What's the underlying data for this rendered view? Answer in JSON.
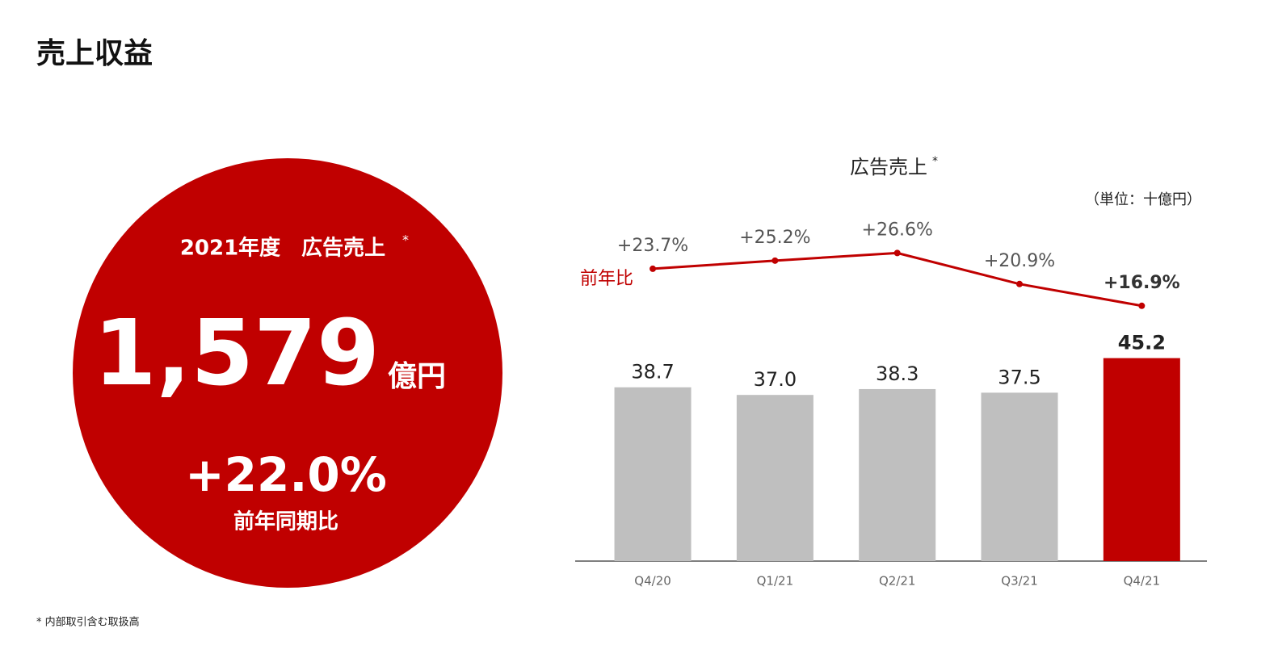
{
  "header": {
    "title": "売上収益"
  },
  "highlight": {
    "label": "2021年度　広告売上",
    "label_mark": "*",
    "amount": "1,579",
    "unit": "億円",
    "growth": "+22.0%",
    "growth_label": "前年同期比"
  },
  "chart_data": {
    "type": "bar",
    "title": "広告売上",
    "title_mark": "*",
    "unit_note": "（単位：十億円）",
    "categories": [
      "Q4/20",
      "Q1/21",
      "Q2/21",
      "Q3/21",
      "Q4/21"
    ],
    "values": [
      38.7,
      37.0,
      38.3,
      37.5,
      45.2
    ],
    "value_labels": [
      "38.7",
      "37.0",
      "38.3",
      "37.5",
      "45.2"
    ],
    "colors": [
      "#bfbfbf",
      "#bfbfbf",
      "#bfbfbf",
      "#bfbfbf",
      "#c00000"
    ],
    "ylim": [
      0,
      80
    ],
    "line": {
      "name": "前年比",
      "color": "#c00000",
      "axis": "y2",
      "values": [
        23.7,
        25.2,
        26.6,
        20.9,
        16.9
      ],
      "value_labels": [
        "+23.7%",
        "+25.2%",
        "+26.6%",
        "+20.9%",
        "+16.9%"
      ]
    },
    "y2lim": [
      -30,
      36
    ]
  },
  "footnote": "* 内部取引含む取扱高"
}
